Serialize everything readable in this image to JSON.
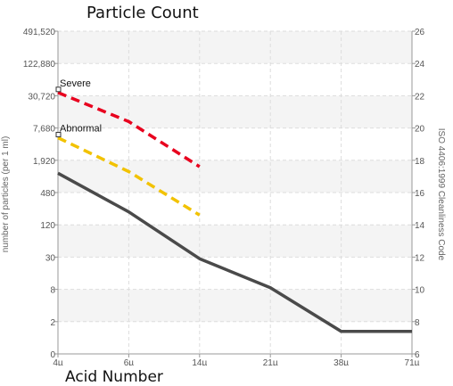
{
  "chart_data": {
    "type": "line",
    "title": "Particle Count",
    "xlabel": "",
    "ylabel": "number of particles (per 1 ml)",
    "y2label": "ISO 4406:1999 Cleanliness Code",
    "x_tick_labels": [
      "4µ",
      "6µ",
      "14µ",
      "21µ",
      "38µ",
      "71µ"
    ],
    "y_tick_labels": [
      "0",
      "2",
      "8",
      "30",
      "120",
      "480",
      "1,920",
      "7,680",
      "30,720",
      "122,880",
      "491,520"
    ],
    "y2_tick_labels": [
      "6",
      "8",
      "10",
      "12",
      "14",
      "16",
      "18",
      "20",
      "22",
      "24",
      "26"
    ],
    "y_scale": "log (base 4)",
    "y2lim": [
      6,
      26
    ],
    "grid": true,
    "series": [
      {
        "name": "",
        "style": "solid",
        "color": "#4a4a4a",
        "values": [
          17.2,
          14.8,
          11.9,
          10.1,
          7.4,
          7.4
        ]
      },
      {
        "name": "",
        "style": "dashed",
        "color": "#f2c200",
        "values": [
          19.4,
          17.3,
          14.6,
          null,
          null,
          null
        ]
      },
      {
        "name": "",
        "style": "dashed",
        "color": "#e8001e",
        "values": [
          22.2,
          20.4,
          17.6,
          null,
          null,
          null
        ]
      }
    ],
    "annotations": [
      {
        "text": "Severe",
        "series": 2
      },
      {
        "text": "Abnormal",
        "series": 1
      }
    ]
  },
  "next_chart_title": "Acid Number"
}
